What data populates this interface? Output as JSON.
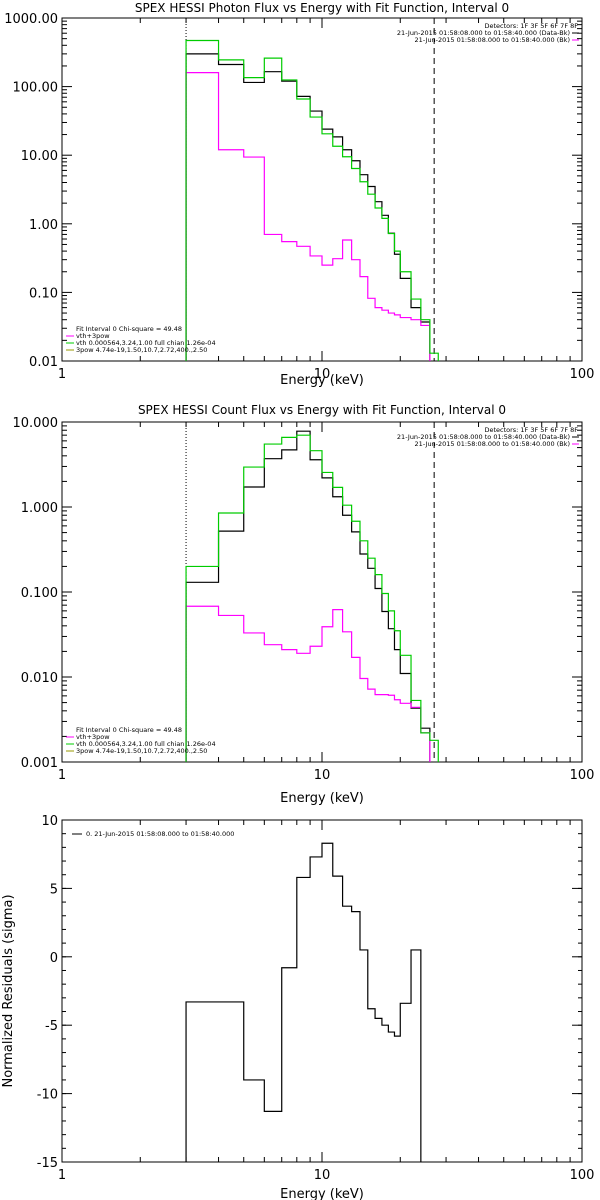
{
  "chart_data": [
    {
      "type": "line",
      "title": "SPEX HESSI Photon Flux vs Energy with Fit Function, Interval 0",
      "xlabel": "Energy (keV)",
      "ylabel": "",
      "x_scale": "log",
      "y_scale": "log",
      "xlim": [
        1,
        100
      ],
      "ylim": [
        0.01,
        1000
      ],
      "x_ticks": [
        {
          "v": 1,
          "label": "1"
        },
        {
          "v": 10,
          "label": "10"
        },
        {
          "v": 100,
          "label": "100"
        }
      ],
      "y_ticks": [
        {
          "v": 1000,
          "label": "1000.00"
        },
        {
          "v": 100,
          "label": "100.00"
        },
        {
          "v": 10,
          "label": "10.00"
        },
        {
          "v": 1,
          "label": "1.00"
        },
        {
          "v": 0.1,
          "label": "0.10"
        },
        {
          "v": 0.01,
          "label": "0.01"
        }
      ],
      "energy_edges": [
        3,
        4,
        5,
        6,
        7,
        8,
        9,
        10,
        11,
        12,
        13,
        14,
        15,
        16,
        17,
        18,
        19,
        20,
        22,
        24,
        26,
        28,
        30
      ],
      "vlines": [
        {
          "x": 3,
          "style": "dotted"
        },
        {
          "x": 27,
          "style": "dashed"
        }
      ],
      "series": [
        {
          "name": "",
          "color": "#000000",
          "values": [
            300,
            210,
            115,
            165,
            120,
            72,
            44,
            24,
            18.5,
            12,
            8.3,
            5.2,
            3.5,
            2.1,
            1.33,
            0.73,
            0.36,
            0.16,
            0.06,
            0.037,
            null,
            null
          ]
        },
        {
          "name": "vth+3pow",
          "color": "#ff00ff",
          "values": [
            160,
            12,
            9.4,
            0.7,
            0.55,
            0.47,
            0.34,
            0.25,
            0.31,
            0.58,
            0.3,
            0.17,
            0.082,
            0.06,
            0.055,
            0.05,
            0.047,
            0.043,
            0.04,
            0.033,
            null,
            null
          ]
        },
        {
          "name": "vth",
          "color": "#00cc00",
          "values": [
            470,
            245,
            135,
            260,
            125,
            66,
            36,
            20.5,
            13.5,
            9.5,
            6.4,
            4.1,
            2.7,
            1.7,
            1.2,
            0.72,
            0.4,
            0.2,
            0.08,
            0.04,
            0.013,
            null
          ]
        }
      ],
      "legend_header": [
        "Detectors: 1F 3F 5F 6F 7F 8F",
        "21-Jun-2015 01:58:08.000 to 01:58:40.000 (Data-Bk)",
        "21-Jun-2015 01:58:08.000 to 01:58:40.000 (Bk)"
      ],
      "legend_lines": [
        {
          "text": "Fit Interval 0   Chi-square = 49.48",
          "color": ""
        },
        {
          "text": "vth+3pow",
          "color": "#ff00ff"
        },
        {
          "text": "vth 0.000564,3.24,1.00   full chian 1.26e-04",
          "color": "#00cc00"
        },
        {
          "text": "3pow 4.74e-19,1.50,10.7,2.72,400.,2.50",
          "color": "#999900"
        }
      ]
    },
    {
      "type": "line",
      "title": "SPEX HESSI Count Flux vs Energy with Fit Function, Interval 0",
      "xlabel": "Energy (keV)",
      "ylabel": "",
      "x_scale": "log",
      "y_scale": "log",
      "xlim": [
        1,
        100
      ],
      "ylim": [
        0.001,
        10
      ],
      "x_ticks": [
        {
          "v": 1,
          "label": "1"
        },
        {
          "v": 10,
          "label": "10"
        },
        {
          "v": 100,
          "label": "100"
        }
      ],
      "y_ticks": [
        {
          "v": 10,
          "label": "10.000"
        },
        {
          "v": 1,
          "label": "1.000"
        },
        {
          "v": 0.1,
          "label": "0.100"
        },
        {
          "v": 0.01,
          "label": "0.010"
        },
        {
          "v": 0.001,
          "label": "0.001"
        }
      ],
      "energy_edges": [
        3,
        4,
        5,
        6,
        7,
        8,
        9,
        10,
        11,
        12,
        13,
        14,
        15,
        16,
        17,
        18,
        19,
        20,
        22,
        24,
        26,
        28,
        30
      ],
      "vlines": [
        {
          "x": 3,
          "style": "dotted"
        },
        {
          "x": 27,
          "style": "dashed"
        }
      ],
      "series": [
        {
          "name": "",
          "color": "#000000",
          "values": [
            0.13,
            0.52,
            1.72,
            3.7,
            4.7,
            7.8,
            3.6,
            2.2,
            1.32,
            0.8,
            0.51,
            0.28,
            0.19,
            0.11,
            0.059,
            0.037,
            0.021,
            0.011,
            0.0043,
            0.0025,
            null,
            null
          ]
        },
        {
          "name": "vth+3pow",
          "color": "#ff00ff",
          "values": [
            0.068,
            0.053,
            0.033,
            0.024,
            0.021,
            0.019,
            0.023,
            0.039,
            0.062,
            0.034,
            0.017,
            0.0096,
            0.0072,
            0.0062,
            0.0062,
            0.0061,
            0.0054,
            0.0049,
            0.0044,
            0.0022,
            null,
            null
          ]
        },
        {
          "name": "vth",
          "color": "#00cc00",
          "values": [
            0.2,
            0.85,
            2.95,
            5.5,
            6.6,
            7.0,
            4.6,
            2.55,
            1.7,
            1.05,
            0.68,
            0.4,
            0.25,
            0.16,
            0.096,
            0.06,
            0.035,
            0.018,
            0.0053,
            0.0022,
            0.0018,
            null
          ]
        }
      ],
      "legend_header": [
        "Detectors: 1F 3F 5F 6F 7F 8F",
        "21-Jun-2015 01:58:08.000 to 01:58:40.000 (Data-Bk)",
        "21-Jun-2015 01:58:08.000 to 01:58:40.000 (Bk)"
      ],
      "legend_lines": [
        {
          "text": "Fit Interval 0   Chi-square = 49.48",
          "color": ""
        },
        {
          "text": "vth+3pow",
          "color": "#ff00ff"
        },
        {
          "text": "vth 0.000564,3.24,1.00   full chian 1.26e-04",
          "color": "#00cc00"
        },
        {
          "text": "3pow 4.74e-19,1.50,10.7,2.72,400.,2.50",
          "color": "#999900"
        }
      ]
    },
    {
      "type": "line",
      "title": "",
      "xlabel": "Energy (keV)",
      "ylabel": "Normalized Residuals (sigma)",
      "x_scale": "log",
      "y_scale": "linear",
      "xlim": [
        1,
        100
      ],
      "ylim": [
        -15,
        10
      ],
      "x_ticks": [
        {
          "v": 1,
          "label": "1"
        },
        {
          "v": 10,
          "label": "10"
        },
        {
          "v": 100,
          "label": "100"
        }
      ],
      "y_ticks": [
        {
          "v": 10,
          "label": "10"
        },
        {
          "v": 5,
          "label": "5"
        },
        {
          "v": 0,
          "label": "0"
        },
        {
          "v": -5,
          "label": "-5"
        },
        {
          "v": -10,
          "label": "-10"
        },
        {
          "v": -15,
          "label": "-15"
        }
      ],
      "energy_edges": [
        3,
        4,
        5,
        6,
        7,
        8,
        9,
        10,
        11,
        12,
        13,
        14,
        15,
        16,
        17,
        18,
        19,
        20,
        22,
        24,
        26,
        28
      ],
      "vlines": [],
      "series": [
        {
          "name": "0. 21-Jun-2015 01:58:08.000 to 01:58:40.000",
          "color": "#000000",
          "values": [
            -3.3,
            -3.3,
            -9.0,
            -11.3,
            -0.8,
            5.8,
            7.3,
            8.3,
            5.9,
            3.7,
            3.3,
            0.5,
            -3.8,
            -4.5,
            -5.0,
            -5.5,
            -5.8,
            -3.4,
            0.5,
            null,
            null
          ]
        }
      ],
      "legend_header": [],
      "legend_lines": [
        {
          "text": "0. 21-Jun-2015 01:58:08.000 to 01:58:40.000",
          "color": "#000000"
        }
      ]
    }
  ]
}
